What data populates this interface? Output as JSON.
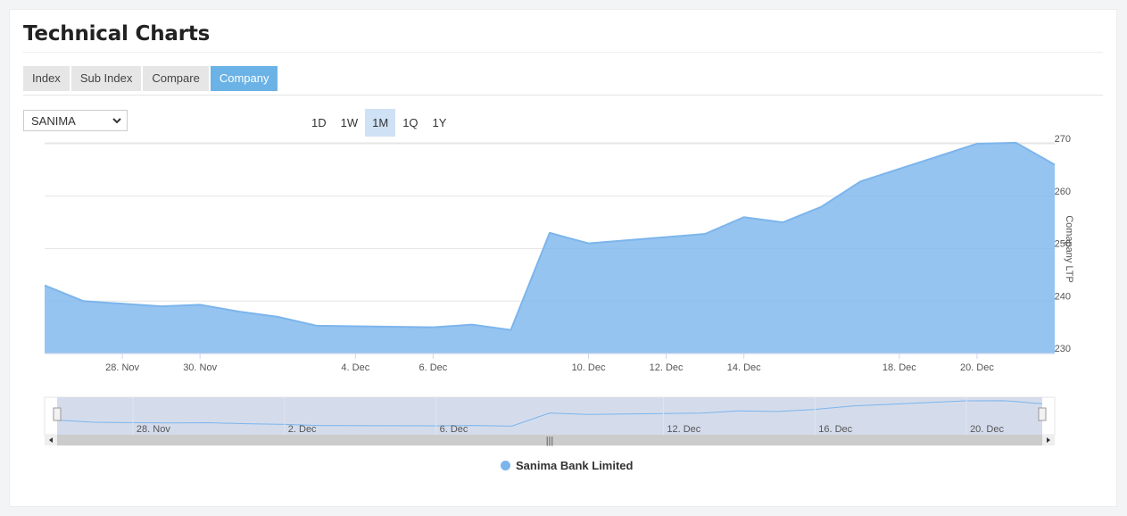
{
  "page": {
    "title": "Technical Charts"
  },
  "tabs": [
    "Index",
    "Sub Index",
    "Compare",
    "Company"
  ],
  "active_tab": "Company",
  "company_select": {
    "value": "SANIMA"
  },
  "ranges": [
    "1D",
    "1W",
    "1M",
    "1Q",
    "1Y"
  ],
  "active_range": "1M",
  "colors": {
    "series": "#7cb5ec",
    "accent": "#6bb3e6"
  },
  "chart_data": {
    "type": "area",
    "title": "",
    "ylabel": "Comapany LTP",
    "ylim": [
      230,
      270
    ],
    "yticks": [
      230,
      240,
      250,
      260,
      270
    ],
    "x": [
      "2020-11-26",
      "2020-11-27",
      "2020-11-29",
      "2020-11-30",
      "2020-12-01",
      "2020-12-02",
      "2020-12-03",
      "2020-12-06",
      "2020-12-07",
      "2020-12-08",
      "2020-12-09",
      "2020-12-10",
      "2020-12-13",
      "2020-12-14",
      "2020-12-15",
      "2020-12-16",
      "2020-12-17",
      "2020-12-20",
      "2020-12-21",
      "2020-12-22"
    ],
    "series": [
      {
        "name": "Sanima Bank Limited",
        "values": [
          243,
          240,
          239,
          239.3,
          238,
          237,
          235.3,
          235,
          235.5,
          234.5,
          253,
          251,
          252.8,
          256,
          255,
          258,
          262.8,
          270,
          270.2,
          266
        ]
      }
    ],
    "xticks": [
      "28. Nov",
      "30. Nov",
      "4. Dec",
      "6. Dec",
      "10. Dec",
      "12. Dec",
      "14. Dec",
      "18. Dec",
      "20. Dec"
    ],
    "navigator_ticks": [
      "28. Nov",
      "2. Dec",
      "6. Dec",
      "12. Dec",
      "16. Dec",
      "20. Dec"
    ],
    "legend": "bottom"
  }
}
